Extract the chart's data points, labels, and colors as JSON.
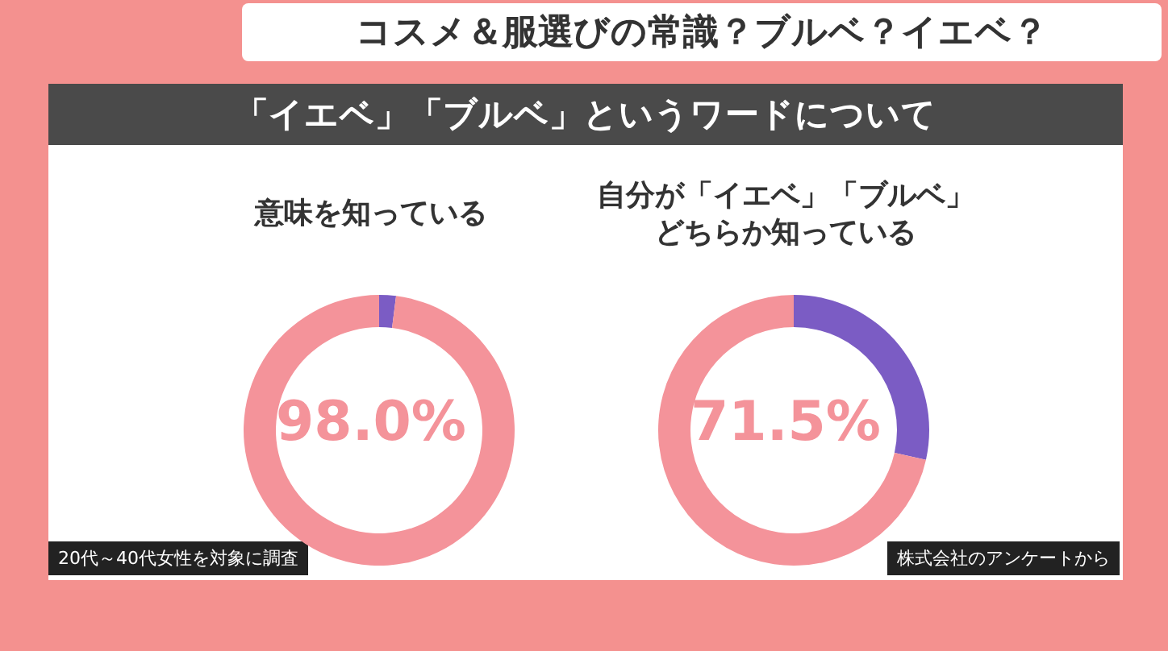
{
  "chart_data": [
    {
      "type": "other",
      "title": "コスメ＆服選びの常識？ブルベ？イエベ？",
      "subtitle": "「イエベ」「ブルベ」というワードについて",
      "annotations": [
        "20代～40代女性を対象に調査",
        "株式会社のアンケートから"
      ]
    },
    {
      "type": "donut",
      "title": "意味を知っている",
      "categories": [
        null,
        null
      ],
      "values": [
        2.0,
        98.0
      ],
      "colors": [
        "#7b5cc4",
        "#f4939a"
      ],
      "value_labels": [
        null,
        "98.0%"
      ]
    },
    {
      "type": "donut",
      "title": "自分が「イエベ」「ブルベ」どちらか知っている",
      "categories": [
        null,
        null
      ],
      "values": [
        28.5,
        71.5
      ],
      "colors": [
        "#7b5cc4",
        "#f4939a"
      ],
      "value_labels": [
        null,
        "71.5%"
      ]
    }
  ]
}
